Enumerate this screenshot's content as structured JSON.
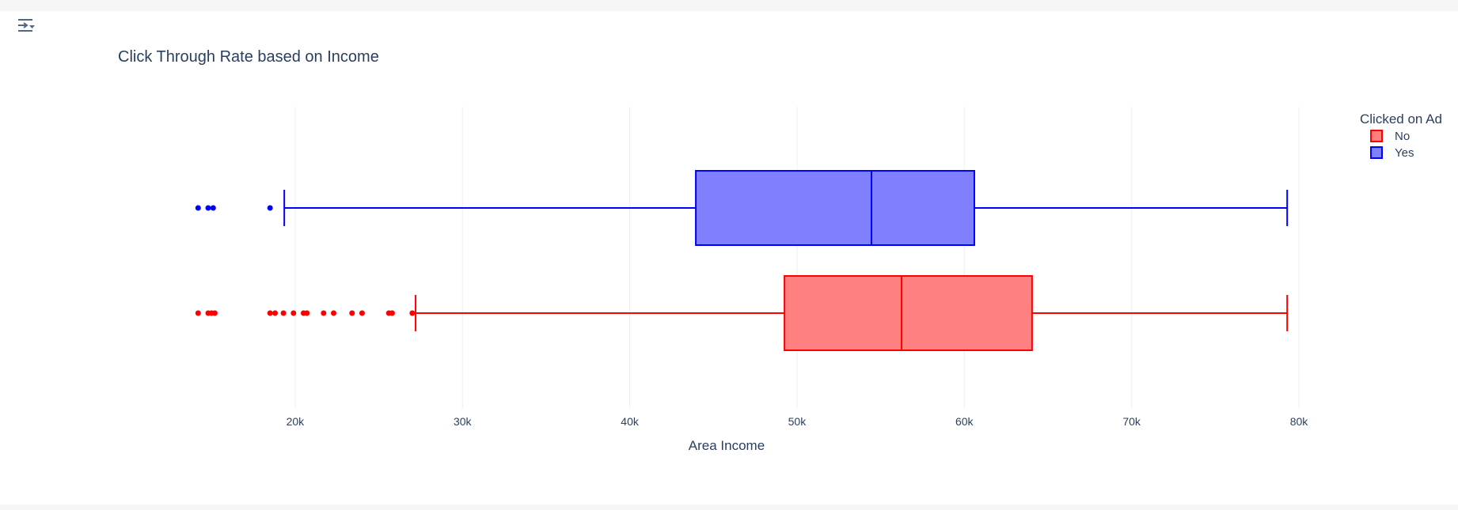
{
  "toolbar": {
    "icon": "filter-toggle-icon"
  },
  "chart_data": {
    "type": "box",
    "orientation": "horizontal",
    "title": "Click Through Rate based on Income",
    "xlabel": "Area Income",
    "ylabel": "",
    "xlim": [
      10400,
      80900
    ],
    "x_ticks": [
      20000,
      30000,
      40000,
      50000,
      60000,
      70000,
      80000
    ],
    "x_tick_labels": [
      "20k",
      "30k",
      "40k",
      "50k",
      "60k",
      "70k",
      "80k"
    ],
    "grid": true,
    "legend": {
      "title": "Clicked on Ad",
      "placement": "top-right"
    },
    "series": [
      {
        "name": "No",
        "color": "#ff0000",
        "fill": "#ff8080",
        "lower_fence": 27200,
        "q1": 49250,
        "median": 56250,
        "q3": 64050,
        "upper_fence": 79300,
        "outliers": [
          14200,
          14800,
          15000,
          15200,
          18500,
          18800,
          19300,
          19900,
          20500,
          20700,
          21700,
          22300,
          23400,
          24000,
          25600,
          25800,
          27000
        ]
      },
      {
        "name": "Yes",
        "color": "#0000ff",
        "fill": "#8080ff",
        "lower_fence": 19350,
        "q1": 43950,
        "median": 54450,
        "q3": 60600,
        "upper_fence": 79300,
        "outliers": [
          14200,
          14800,
          15100,
          18500
        ]
      }
    ]
  }
}
